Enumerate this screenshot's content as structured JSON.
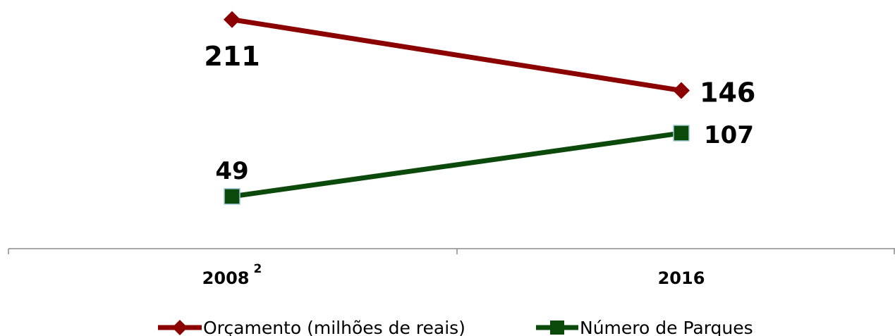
{
  "chart_data": {
    "type": "line",
    "title": "",
    "xlabel": "",
    "ylabel": "",
    "categories": [
      "2008",
      "2016"
    ],
    "category_superscripts": [
      "2",
      ""
    ],
    "series": [
      {
        "name": "Orçamento (milhões de reais)",
        "values": [
          211,
          146
        ],
        "color": "#8B0000",
        "marker": "diamond",
        "data_labels": [
          "211",
          "146"
        ]
      },
      {
        "name": "Número de Parques",
        "values": [
          49,
          107
        ],
        "color": "#0B4A0B",
        "marker": "square",
        "data_labels": [
          "49",
          "107"
        ]
      }
    ],
    "grid": false,
    "legend_position": "bottom"
  }
}
